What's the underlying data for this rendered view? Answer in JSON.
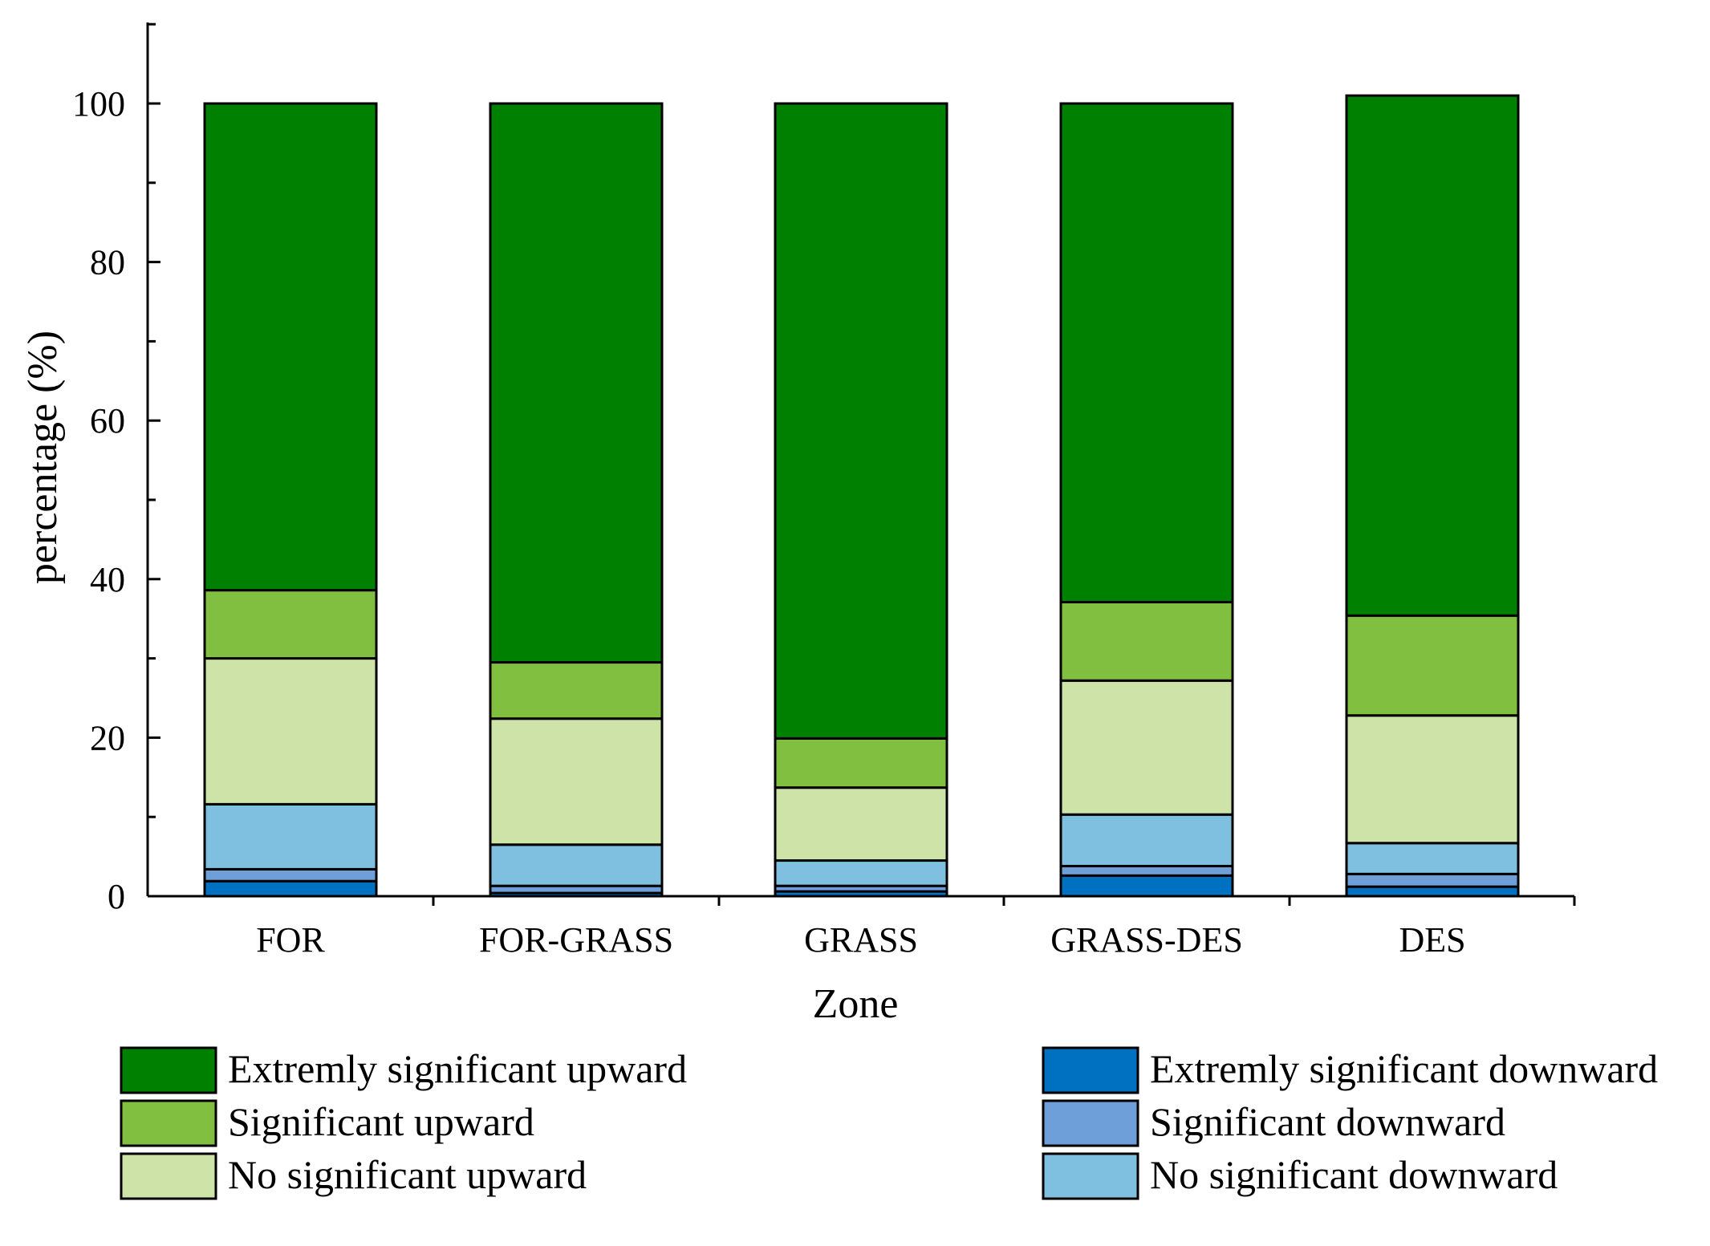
{
  "chart_data": {
    "type": "bar",
    "stacked": true,
    "title": "",
    "xlabel": "Zone",
    "ylabel": "percentage (%)",
    "ylim": [
      0,
      110
    ],
    "yticks": [
      0,
      20,
      40,
      60,
      80,
      100
    ],
    "yticks_labels": [
      "0",
      "20",
      "40",
      "60",
      "80",
      "100"
    ],
    "categories": [
      "FOR",
      "FOR-GRASS",
      "GRASS",
      "GRASS-DES",
      "DES"
    ],
    "series": [
      {
        "name": "Extremly significant downward",
        "color": "#0070c0",
        "values": [
          1.9,
          0.4,
          0.6,
          2.6,
          1.2
        ]
      },
      {
        "name": "Significant downward",
        "color": "#6f9fd8",
        "values": [
          1.5,
          0.9,
          0.7,
          1.2,
          1.6
        ]
      },
      {
        "name": "No significant downward",
        "color": "#7fbfe0",
        "values": [
          8.2,
          5.2,
          3.2,
          6.5,
          3.9
        ]
      },
      {
        "name": "No significant upward",
        "color": "#cde3a8",
        "values": [
          18.4,
          15.9,
          9.2,
          16.9,
          16.1
        ]
      },
      {
        "name": "Significant upward",
        "color": "#80bf40",
        "values": [
          8.6,
          7.1,
          6.2,
          9.9,
          12.6
        ]
      },
      {
        "name": "Extremly significant upward",
        "color": "#008000",
        "values": [
          61.4,
          70.5,
          80.1,
          62.9,
          65.6
        ]
      }
    ],
    "legend": {
      "placement": "bottom",
      "left_column": [
        "Extremly significant upward",
        "Significant upward",
        "No significant upward"
      ],
      "right_column": [
        "Extremly significant downward",
        "Significant downward",
        "No significant downward"
      ]
    }
  }
}
